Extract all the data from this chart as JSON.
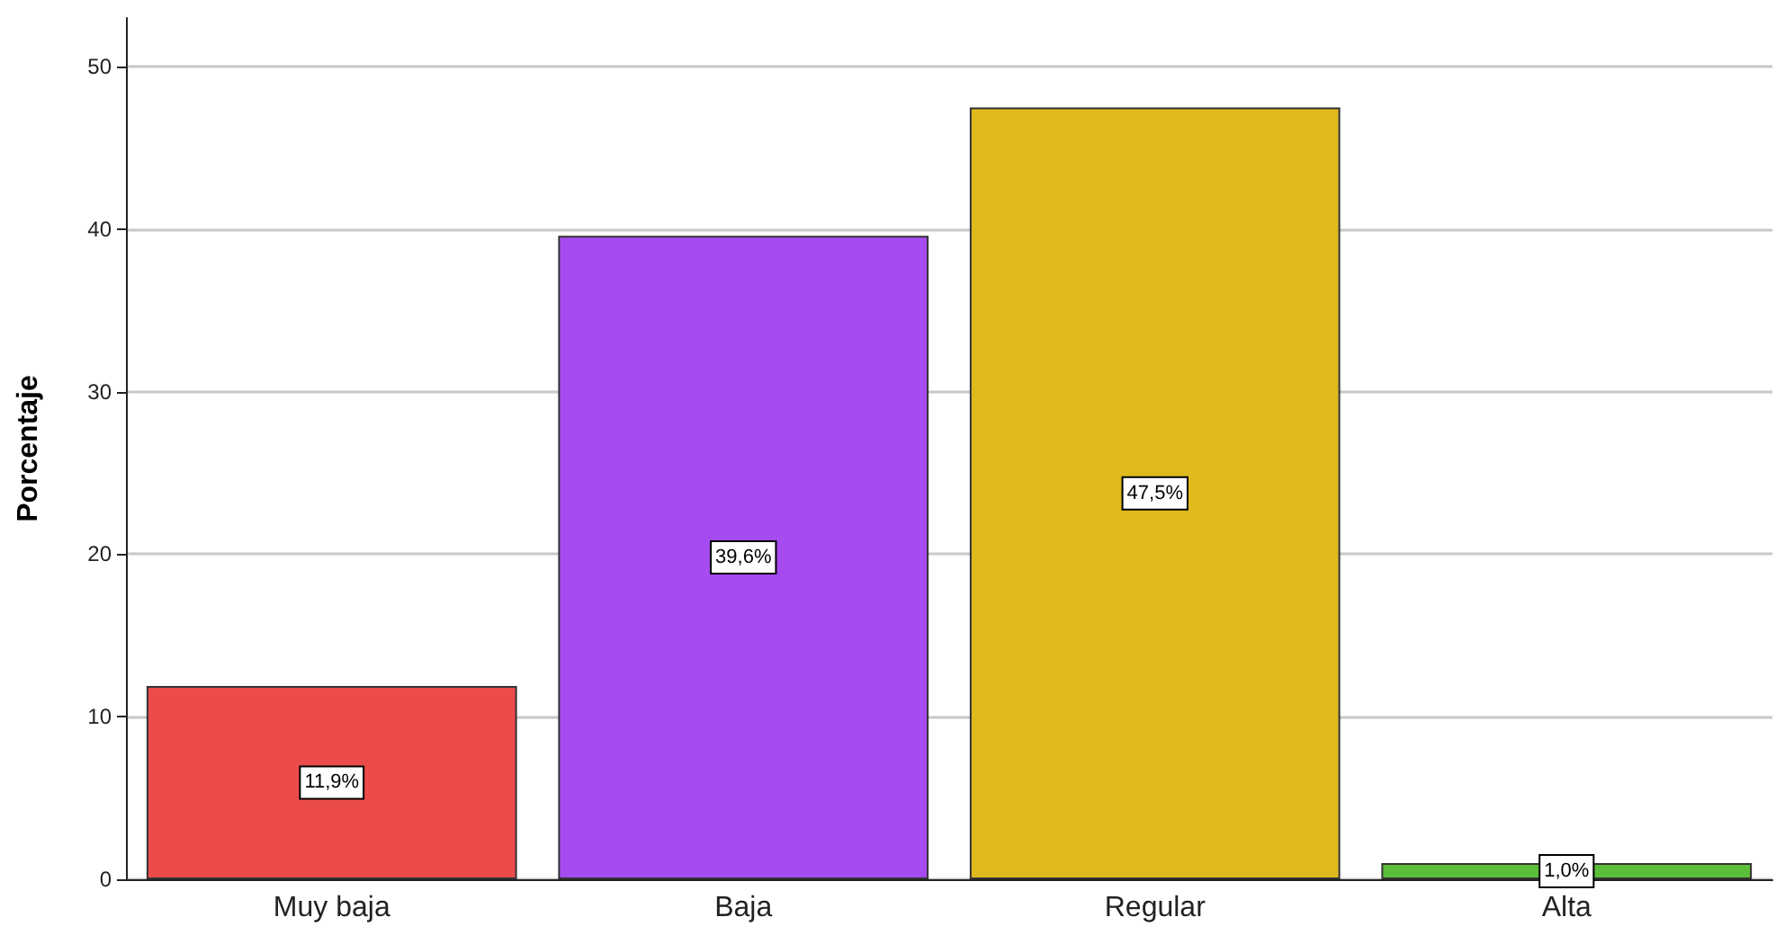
{
  "chart_data": {
    "type": "bar",
    "ylabel": "Porcentaje",
    "categories": [
      "Muy baja",
      "Baja",
      "Regular",
      "Alta"
    ],
    "values": [
      11.9,
      39.6,
      47.5,
      1.0
    ],
    "colors": [
      "#ec4b4b",
      "#a64bf0",
      "#dfba1f",
      "#5cbf3a"
    ],
    "value_labels": [
      "11,9%",
      "39,6%",
      "47,5%",
      "1,0%"
    ],
    "ylim": [
      0,
      53
    ],
    "yticks": [
      0,
      10,
      20,
      30,
      40,
      50
    ],
    "grid": "y"
  }
}
